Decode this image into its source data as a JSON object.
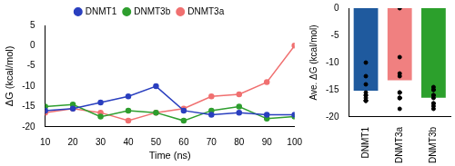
{
  "chart_data": [
    {
      "type": "line",
      "x": [
        10,
        20,
        30,
        40,
        50,
        60,
        70,
        80,
        90,
        100
      ],
      "series": [
        {
          "name": "DNMT1",
          "color": "#2a3fbf",
          "values": [
            -16,
            -15.5,
            -14,
            -12.5,
            -10,
            -16,
            -17,
            -16.5,
            -17,
            -17
          ]
        },
        {
          "name": "DNMT3b",
          "color": "#2e9e2e",
          "values": [
            -15,
            -14.5,
            -17.5,
            -16,
            -16.5,
            -18.5,
            -16,
            -15,
            -18,
            -17.5
          ]
        },
        {
          "name": "DNMT3a",
          "color": "#f07070",
          "values": [
            -16.5,
            -15.5,
            -16.5,
            -18.5,
            -16.5,
            -15.5,
            -12.5,
            -12,
            -9,
            0
          ]
        }
      ],
      "x_label": "Time (ns)",
      "y_label": "ΔG (kcal/mol)",
      "xlim": [
        10,
        100
      ],
      "xticks": [
        10,
        20,
        30,
        40,
        50,
        60,
        70,
        80,
        90,
        100
      ],
      "ylim": [
        -20,
        5
      ],
      "yticks": [
        -20,
        -15,
        -10,
        -5,
        0,
        5
      ],
      "legend": "top",
      "marker": "circle",
      "grid": false
    },
    {
      "type": "bar",
      "categories": [
        "DNMT1",
        "DNMT3a",
        "DNMT3b"
      ],
      "values": [
        -15.15,
        -13.25,
        -16.45
      ],
      "colors": [
        "#1f5a9e",
        "#f08080",
        "#2ca02c"
      ],
      "points": [
        [
          -16,
          -15.5,
          -14,
          -12.5,
          -10,
          -16,
          -17,
          -16.5,
          -17,
          -17
        ],
        [
          -16.5,
          -15.5,
          -16.5,
          -18.5,
          -16.5,
          -15.5,
          -12.5,
          -12,
          -9,
          0
        ],
        [
          -15,
          -14.5,
          -17.5,
          -16,
          -16.5,
          -18.5,
          -16,
          -15,
          -18,
          -17.5
        ]
      ],
      "y_label": "Ave. ΔG (kcal/mol)",
      "ylim": [
        -20,
        0
      ],
      "yticks": [
        -20,
        -15,
        -10,
        -5,
        0
      ],
      "grid": false
    }
  ]
}
